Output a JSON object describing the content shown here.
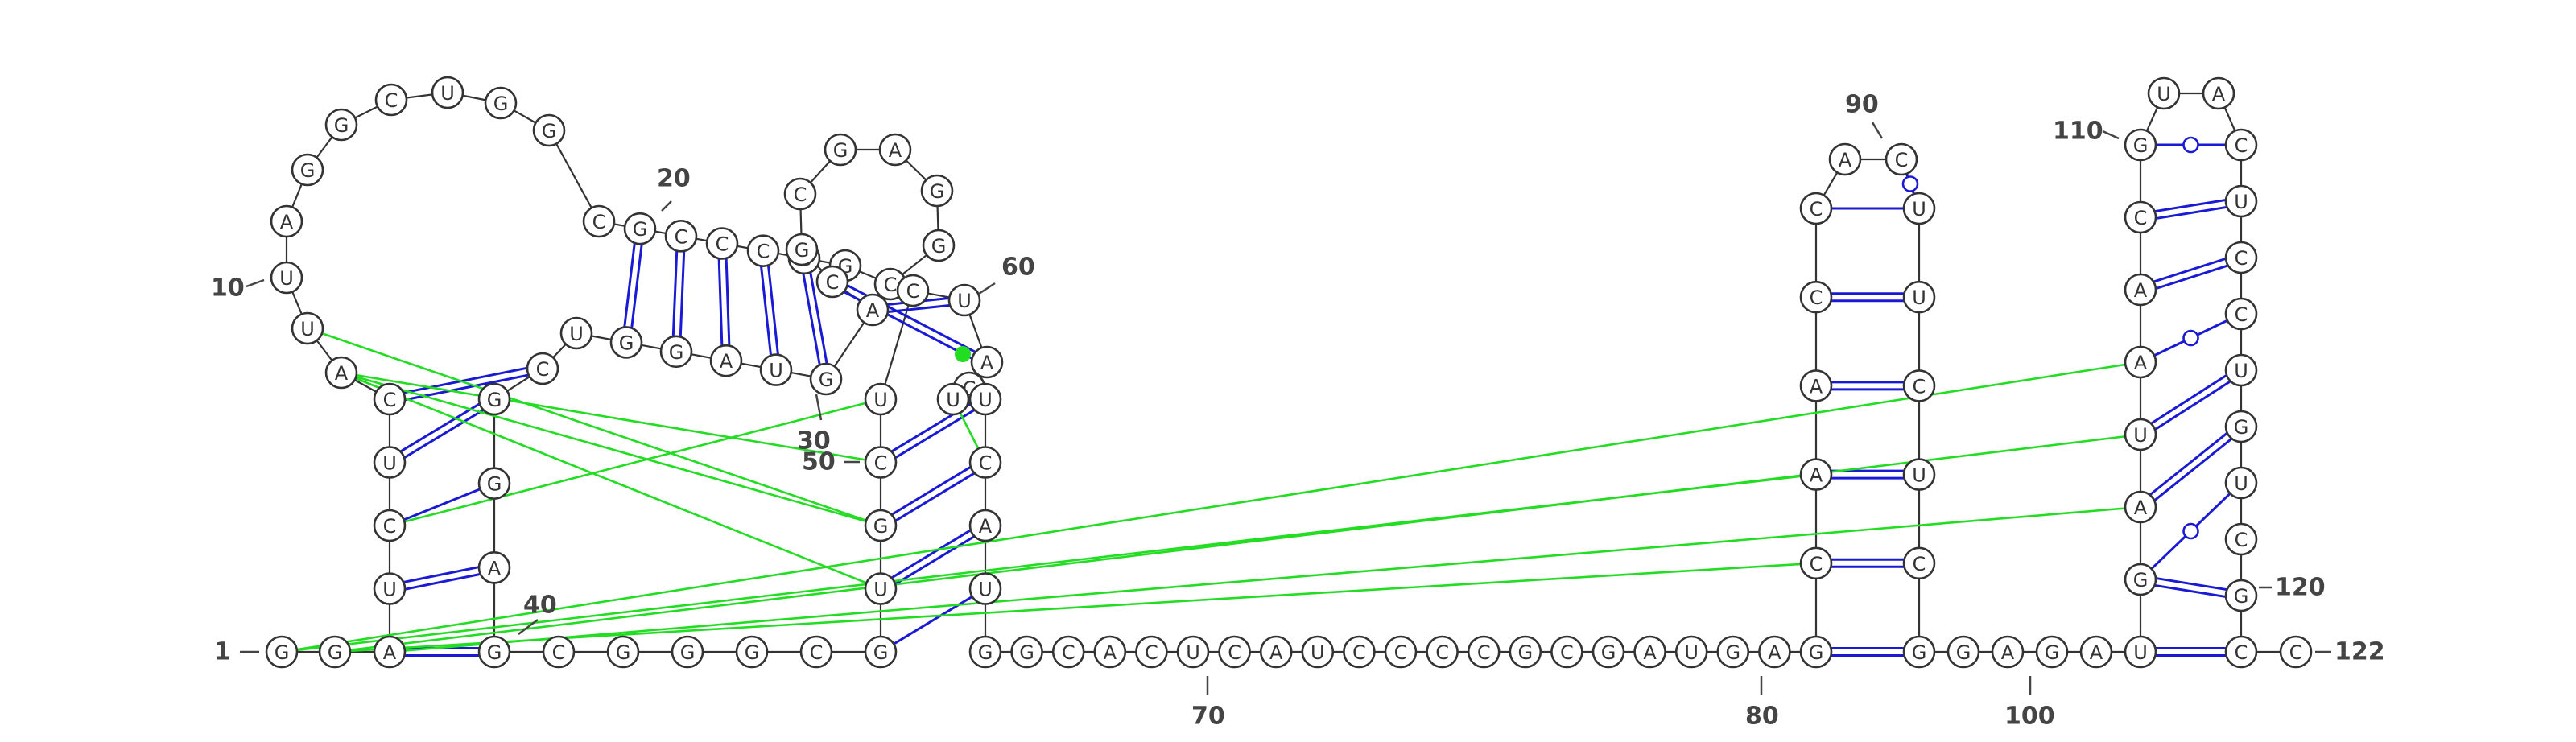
{
  "sequence": "GGAUCUCAUUAGGCUGGCGCCCCGCGGAGCGCAGUAGGUCGGAGCGGGCGUGCUCUACUUCAUGGCACUCAUCCCCGCGAUGAGCAACCACUUCUCGGAGAUGAUAACGUACUCCUGUCGCC",
  "labels": [
    {
      "n": "1",
      "text": "1"
    },
    {
      "n": "10",
      "text": "10"
    },
    {
      "n": "20",
      "text": "20"
    },
    {
      "n": "30",
      "text": "30"
    },
    {
      "n": "40",
      "text": "40"
    },
    {
      "n": "50",
      "text": "50"
    },
    {
      "n": "60",
      "text": "60"
    },
    {
      "n": "70",
      "text": "70"
    },
    {
      "n": "80",
      "text": "80"
    },
    {
      "n": "90",
      "text": "90"
    },
    {
      "n": "100",
      "text": "100"
    },
    {
      "n": "110",
      "text": "110"
    },
    {
      "n": "120",
      "text": "120"
    },
    {
      "n": "122",
      "text": "122"
    }
  ],
  "colors": {
    "canonical_pair": "#1a1ad4",
    "tertiary_interaction": "#22dd22",
    "backbone": "#333333"
  }
}
